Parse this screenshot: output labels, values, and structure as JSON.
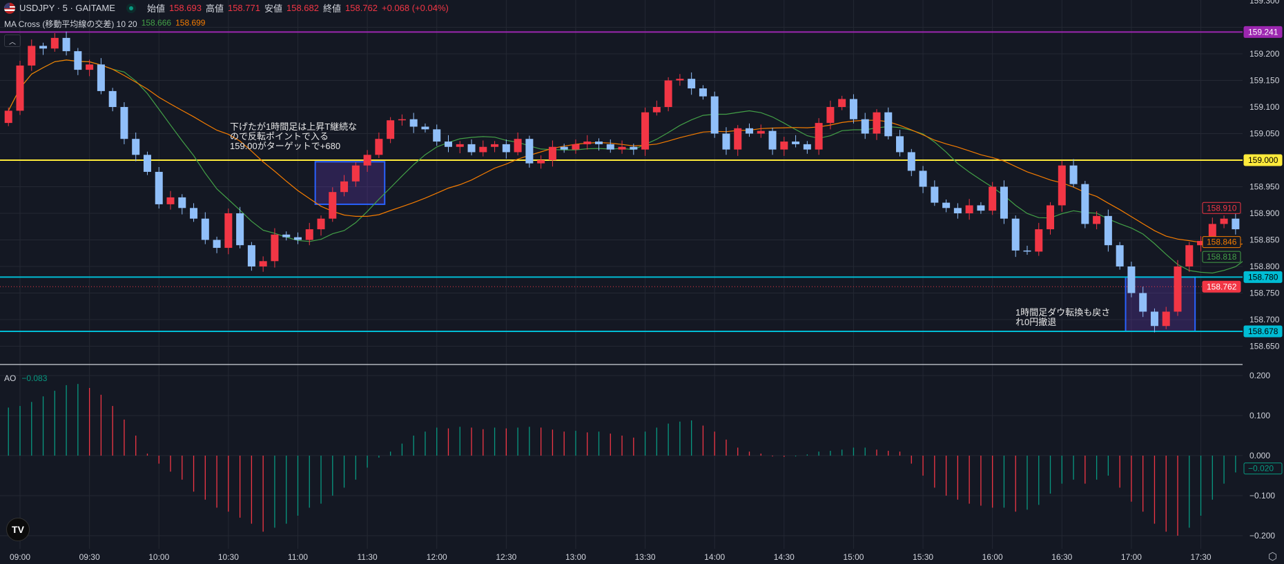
{
  "header": {
    "symbol": "USDJPY · 5 · GAITAME",
    "open_label": "始値",
    "open": "158.693",
    "high_label": "高値",
    "high": "158.771",
    "low_label": "安値",
    "low": "158.682",
    "close_label": "終値",
    "close": "158.762",
    "change": "+0.068 (+0.04%)"
  },
  "ma_legend": {
    "name": "MA Cross (移動平均線の交差) 10 20",
    "fast": "158.666",
    "slow": "158.699"
  },
  "ao_legend": {
    "name": "AO",
    "value": "−0.083"
  },
  "notes": {
    "entry": "下げたが1時間足は上昇T継続な\nので反転ポイントで入る\n159.00がターゲットで+680",
    "exit": "1時間足ダウ転換も戻さ\nれ0円撤退"
  },
  "colors": {
    "up": "#f23645",
    "down": "#90bff9",
    "ma_fast": "#43a047",
    "ma_slow": "#f57c00",
    "ao_up": "#089981",
    "ao_down": "#f23645",
    "bg": "#141823"
  },
  "chart_data": {
    "type": "candlestick",
    "start_time": "08:55",
    "interval_min": 5,
    "first_open": 159.07,
    "closes": [
      159.093,
      159.178,
      159.215,
      159.21,
      159.23,
      159.205,
      159.17,
      159.18,
      159.13,
      159.1,
      159.04,
      159.01,
      158.978,
      158.917,
      158.93,
      158.91,
      158.89,
      158.85,
      158.835,
      158.9,
      158.84,
      158.8,
      158.81,
      158.86,
      158.855,
      158.85,
      158.87,
      158.89,
      158.94,
      158.96,
      158.99,
      159.01,
      159.04,
      159.075,
      159.077,
      159.063,
      159.058,
      159.035,
      159.025,
      159.03,
      159.015,
      159.025,
      159.03,
      159.015,
      159.04,
      158.994,
      159.0,
      159.025,
      159.02,
      159.03,
      159.035,
      159.03,
      159.02,
      159.025,
      159.02,
      159.09,
      159.1,
      159.15,
      159.153,
      159.135,
      159.12,
      159.05,
      159.02,
      159.06,
      159.05,
      159.055,
      159.02,
      159.035,
      159.03,
      159.02,
      159.07,
      159.1,
      159.115,
      159.077,
      159.05,
      159.09,
      159.045,
      159.015,
      158.98,
      158.95,
      158.92,
      158.91,
      158.9,
      158.915,
      158.905,
      158.95,
      158.89,
      158.83,
      158.828,
      158.87,
      158.915,
      158.99,
      158.955,
      158.88,
      158.895,
      158.84,
      158.8,
      158.75,
      158.715,
      158.688,
      158.715,
      158.8,
      158.84,
      158.848,
      158.88,
      158.89,
      158.87,
      158.91
    ],
    "ma_periods": [
      10,
      20
    ],
    "price_ylim": [
      158.62,
      159.305
    ],
    "price_ticks": [
      "159.300",
      "159.200",
      "159.150",
      "159.100",
      "159.050",
      "158.950",
      "158.900",
      "158.850",
      "158.800",
      "158.750",
      "158.700",
      "158.650"
    ],
    "time_ticks": [
      "09:00",
      "09:30",
      "10:00",
      "10:30",
      "11:00",
      "11:30",
      "12:00",
      "12:30",
      "13:00",
      "13:30",
      "14:00",
      "14:30",
      "15:00",
      "15:30",
      "16:00",
      "16:30",
      "17:00",
      "17:30"
    ],
    "hlines": [
      {
        "price": 159.241,
        "label": "159.241",
        "color": "#9c27b0"
      },
      {
        "price": 159.0,
        "label": "159.000",
        "color": "#ffeb3b"
      },
      {
        "price": 158.78,
        "label": "158.780",
        "color": "#00bcd4"
      },
      {
        "price": 158.678,
        "label": "158.678",
        "color": "#00bcd4"
      }
    ],
    "price_tags": [
      {
        "price": 158.91,
        "label": "158.910",
        "color": "#f23645"
      },
      {
        "price": 158.846,
        "label": "158.846",
        "color": "#f57c00"
      },
      {
        "price": 158.818,
        "label": "158.818",
        "color": "#43a047"
      },
      {
        "price": 158.762,
        "label": "158.762",
        "color": "#f23645",
        "filled": true
      }
    ],
    "boxes": [
      {
        "from": "11:10",
        "to": "11:35",
        "top": 158.997,
        "bottom": 158.917
      },
      {
        "from": "17:00",
        "to": "17:25",
        "top": 158.78,
        "bottom": 158.678
      }
    ],
    "ao": {
      "values": [
        0.12,
        0.124,
        0.134,
        0.148,
        0.162,
        0.176,
        0.179,
        0.169,
        0.152,
        0.124,
        0.09,
        0.05,
        0.005,
        -0.02,
        -0.04,
        -0.06,
        -0.09,
        -0.11,
        -0.13,
        -0.14,
        -0.155,
        -0.17,
        -0.19,
        -0.18,
        -0.17,
        -0.15,
        -0.13,
        -0.12,
        -0.1,
        -0.08,
        -0.06,
        -0.03,
        -0.005,
        0.01,
        0.03,
        0.05,
        0.06,
        0.07,
        0.068,
        0.072,
        0.07,
        0.066,
        0.07,
        0.068,
        0.07,
        0.072,
        0.07,
        0.065,
        0.06,
        0.062,
        0.058,
        0.06,
        0.055,
        0.05,
        0.045,
        0.06,
        0.07,
        0.08,
        0.085,
        0.088,
        0.075,
        0.06,
        0.04,
        0.02,
        0.01,
        0.005,
        -0.002,
        -0.003,
        -0.002,
        0.003,
        0.01,
        0.012,
        0.015,
        0.02,
        0.02,
        0.015,
        0.012,
        0.01,
        -0.02,
        -0.05,
        -0.08,
        -0.1,
        -0.11,
        -0.12,
        -0.125,
        -0.13,
        -0.13,
        -0.14,
        -0.135,
        -0.123,
        -0.095,
        -0.07,
        -0.06,
        -0.07,
        -0.06,
        -0.05,
        -0.08,
        -0.115,
        -0.14,
        -0.17,
        -0.19,
        -0.2,
        -0.18,
        -0.15,
        -0.11,
        -0.07,
        -0.042,
        -0.02
      ],
      "ylim": [
        -0.23,
        0.23
      ],
      "ticks": [
        "0.200",
        "0.100",
        "0.000",
        "−0.100",
        "−0.200"
      ],
      "tick_values": [
        0.2,
        0.1,
        0,
        -0.1,
        -0.2
      ],
      "last_label": "−0.020",
      "last_value": -0.02
    }
  }
}
